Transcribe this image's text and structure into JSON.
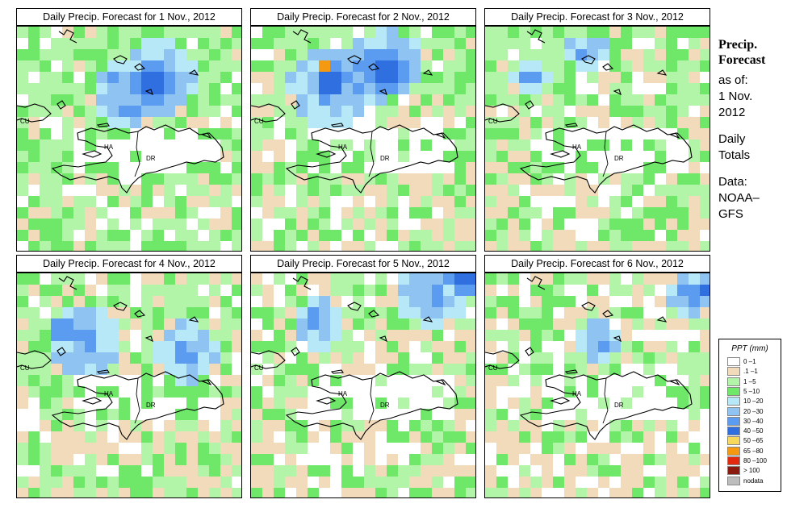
{
  "panels": [
    {
      "title": "Daily Precip. Forecast for  1 Nov., 2012",
      "seed": 11,
      "wet": [
        [
          0.62,
          0.22,
          0.26
        ],
        [
          0.45,
          0.32,
          0.18
        ]
      ],
      "heavy": [
        [
          0.62,
          0.25,
          0.12
        ]
      ],
      "peak": [],
      "bias": 0.0
    },
    {
      "title": "Daily Precip. Forecast for  2 Nov., 2012",
      "seed": 23,
      "wet": [
        [
          0.35,
          0.27,
          0.28
        ],
        [
          0.62,
          0.16,
          0.22
        ]
      ],
      "heavy": [
        [
          0.35,
          0.25,
          0.1
        ],
        [
          0.6,
          0.2,
          0.12
        ]
      ],
      "peak": [
        "orange"
      ],
      "bias": 0.05
    },
    {
      "title": "Daily Precip. Forecast for  3 Nov., 2012",
      "seed": 37,
      "wet": [
        [
          0.2,
          0.24,
          0.12
        ],
        [
          0.45,
          0.12,
          0.14
        ]
      ],
      "heavy": [],
      "peak": [],
      "bias": 0.1
    },
    {
      "title": "Daily Precip. Forecast for  4 Nov., 2012",
      "seed": 41,
      "wet": [
        [
          0.3,
          0.3,
          0.25
        ],
        [
          0.75,
          0.35,
          0.2
        ]
      ],
      "heavy": [
        [
          0.2,
          0.25,
          0.06
        ]
      ],
      "peak": [],
      "bias": 0.15
    },
    {
      "title": "Daily Precip. Forecast for  5 Nov., 2012",
      "seed": 53,
      "wet": [
        [
          0.8,
          0.08,
          0.25
        ],
        [
          0.3,
          0.22,
          0.18
        ]
      ],
      "heavy": [
        [
          0.95,
          0.03,
          0.08
        ]
      ],
      "peak": [],
      "bias": 0.2
    },
    {
      "title": "Daily Precip. Forecast for  6 Nov., 2012",
      "seed": 67,
      "wet": [
        [
          0.9,
          0.1,
          0.15
        ],
        [
          0.5,
          0.3,
          0.15
        ]
      ],
      "heavy": [
        [
          0.98,
          0.06,
          0.05
        ]
      ],
      "peak": [],
      "bias": 0.25
    }
  ],
  "map_labels": {
    "cu": "CU",
    "ha": "HA",
    "dr": "DR"
  },
  "side": {
    "title_line1": "Precip.",
    "title_line2": "Forecast",
    "as_of": "as of:",
    "date_line1": "1 Nov.",
    "date_line2": "2012",
    "daily_line1": "Daily",
    "daily_line2": "Totals",
    "data_line1": "Data:",
    "data_line2": "NOAA–",
    "data_line3": "GFS"
  },
  "legend": {
    "title": "PPT (mm)",
    "items": [
      {
        "label": "0 –1",
        "color": "#ffffff"
      },
      {
        "label": ".1 –1",
        "color": "#f1dbbb"
      },
      {
        "label": "1 –5",
        "color": "#b3f5a8"
      },
      {
        "label": "5 –10",
        "color": "#6fe86a"
      },
      {
        "label": "10 –20",
        "color": "#b6e8f8"
      },
      {
        "label": "20 –30",
        "color": "#8fc4f2"
      },
      {
        "label": "30 –40",
        "color": "#5b9bf0"
      },
      {
        "label": "40 –50",
        "color": "#2f6fe0"
      },
      {
        "label": "50 –65",
        "color": "#f8d85a"
      },
      {
        "label": "65 –80",
        "color": "#f59a10"
      },
      {
        "label": "80 –100",
        "color": "#e22a10"
      },
      {
        "label": "> 100",
        "color": "#8a1a10"
      },
      {
        "label": "nodata",
        "color": "#bdbdbd"
      }
    ]
  }
}
